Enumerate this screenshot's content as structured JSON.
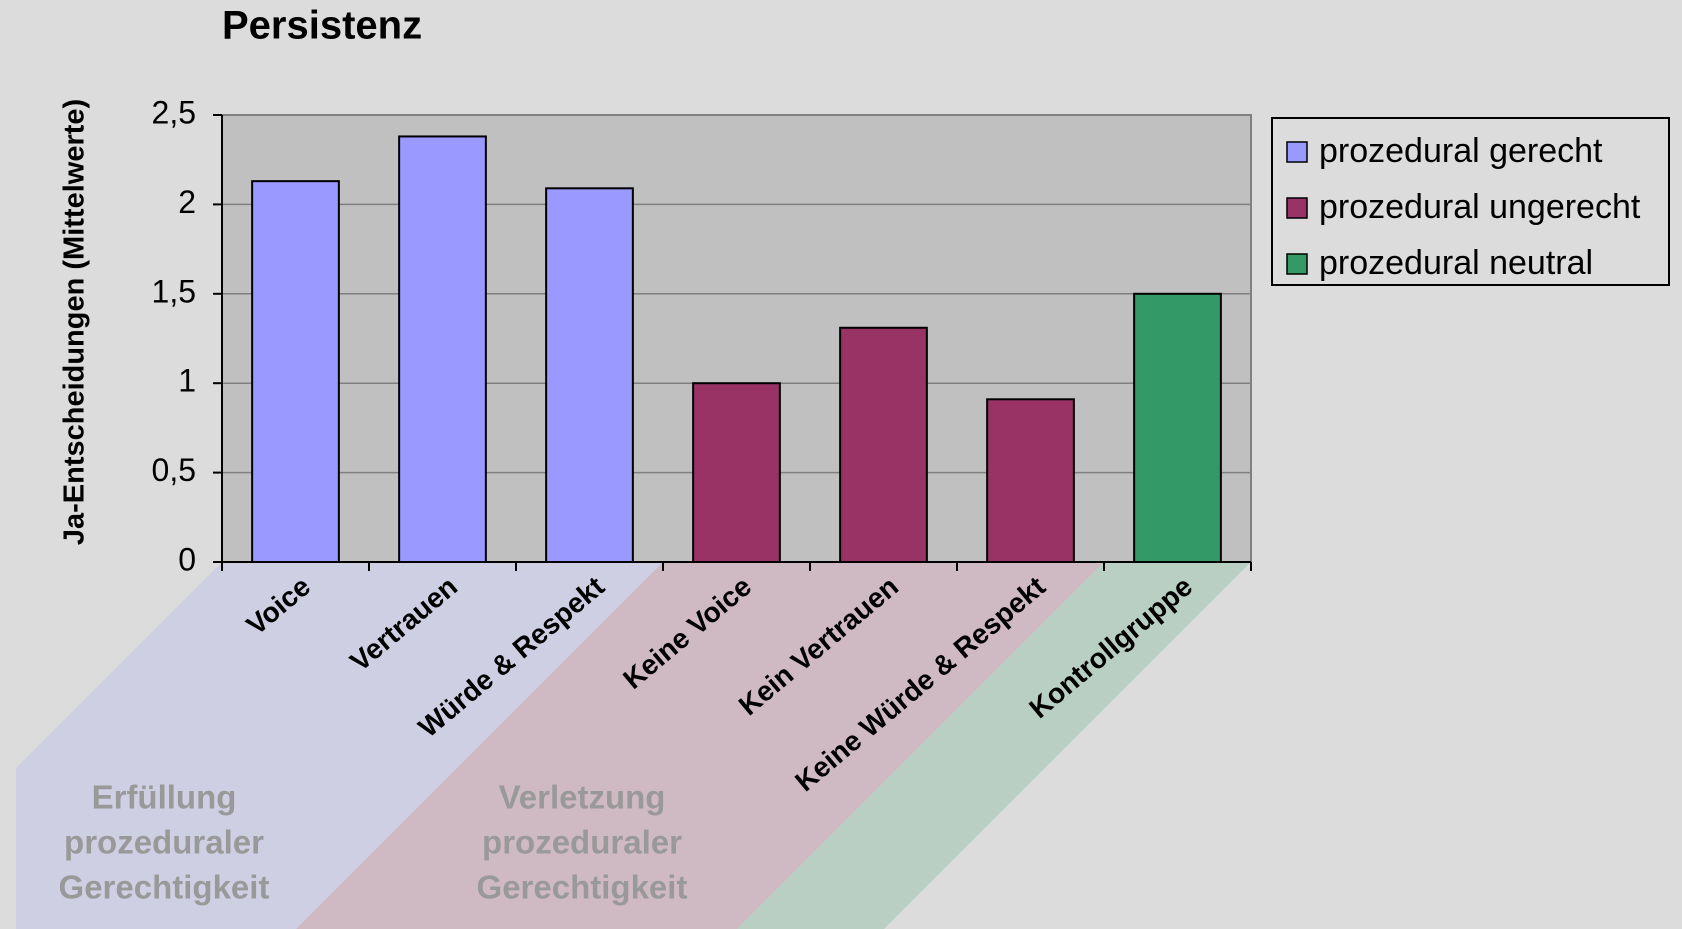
{
  "chart_data": {
    "type": "bar",
    "title": "Persistenz",
    "y_label": "Ja-Entscheidungen (Mittelwerte)",
    "categories": [
      "Voice",
      "Vertrauen",
      "Würde & Respekt",
      "Keine Voice",
      "Kein Vertrauen",
      "Keine Würde & Respekt",
      "Kontrollgruppe"
    ],
    "series": [
      {
        "name": "prozedural gerecht",
        "color": "#9999ff",
        "values": [
          2.13,
          2.38,
          2.09,
          null,
          null,
          null,
          null
        ]
      },
      {
        "name": "prozedural ungerecht",
        "color": "#993366",
        "values": [
          null,
          null,
          null,
          1.0,
          1.31,
          0.91,
          null
        ]
      },
      {
        "name": "prozedural neutral",
        "color": "#339966",
        "values": [
          null,
          null,
          null,
          null,
          null,
          null,
          1.5
        ]
      }
    ],
    "group_labels": [
      [
        "Erfüllung",
        "prozeduraler",
        "Gerechtigkeit"
      ],
      [
        "Verletzung",
        "prozeduraler",
        "Gerechtigkeit"
      ]
    ],
    "ylim": [
      0,
      2.5
    ],
    "yticks": [
      0,
      {
        "value": 0.5,
        "label": "0,5"
      },
      1,
      {
        "value": 1.5,
        "label": "1,5"
      },
      2,
      {
        "value": 2.5,
        "label": "2,5"
      }
    ],
    "grid": true,
    "legend": "right"
  }
}
